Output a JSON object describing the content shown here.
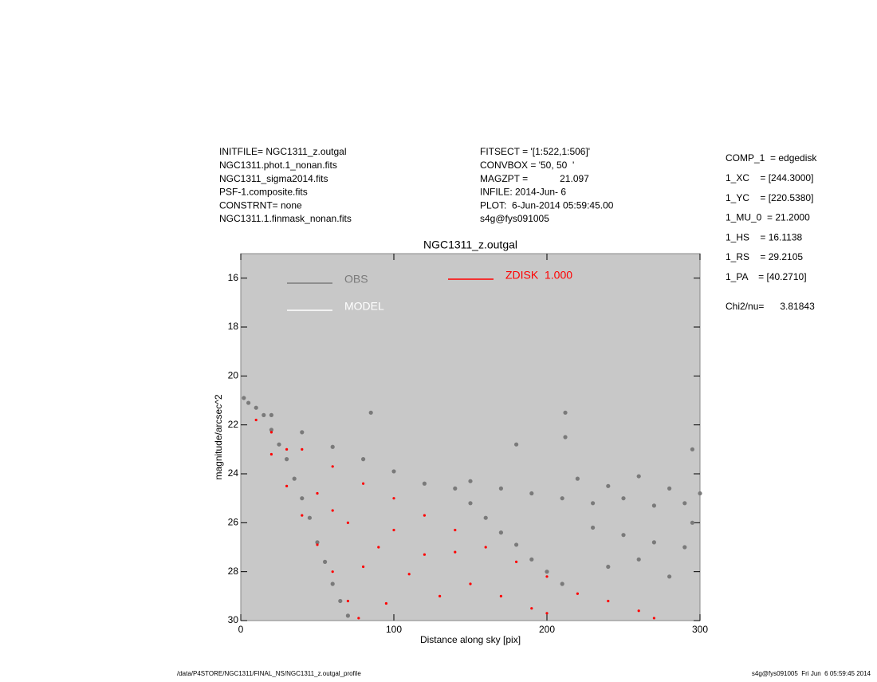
{
  "chart_data": {
    "type": "scatter",
    "title": "NGC1311_z.outgal",
    "x_label": "Distance along sky [pix]",
    "y_label": "magnitude/arcsec^2",
    "info_left": [
      "INITFILE= NGC1311_z.outgal",
      "NGC1311.phot.1_nonan.fits",
      "NGC1311_sigma2014.fits",
      "PSF-1.composite.fits",
      "CONSTRNT= none",
      "NGC1311.1.finmask_nonan.fits"
    ],
    "info_middle": [
      "FITSECT = '[1:522,1:506]'",
      "CONVBOX = '50, 50  '",
      "MAGZPT =            21.097",
      "INFILE: 2014-Jun- 6",
      "PLOT:  6-Jun-2014 05:59:45.00",
      "s4g@fys091005"
    ],
    "info_right": [
      "COMP_1  = edgedisk",
      "1_XC    = [244.3000]",
      "1_YC    = [220.5380]",
      "1_MU_0  = 21.2000",
      "1_HS    = 16.1138",
      "1_RS    = 29.2105",
      "1_PA    = [40.2710]"
    ],
    "fit_result": "Chi2/nu=      3.81843",
    "footer_left": "/data/P4STORE/NGC1311/FINAL_NS/NGC1311_z.outgal_profile",
    "footer_right": "s4g@fys091005  Fri Jun  6 05:59:45 2014",
    "xlim": [
      0,
      300
    ],
    "xticks": [
      0,
      100,
      200,
      300
    ],
    "ylim": [
      30,
      15
    ],
    "yticks": [
      16,
      18,
      20,
      22,
      24,
      26,
      28,
      30
    ],
    "series": [
      {
        "name": "OBS",
        "color": "#7a7a7a",
        "x": [
          2,
          5,
          10,
          15,
          20,
          25,
          30,
          35,
          40,
          45,
          50,
          55,
          60,
          65,
          70,
          20,
          40,
          60,
          80,
          100,
          120,
          140,
          150,
          160,
          170,
          180,
          190,
          200,
          210,
          150,
          170,
          190,
          210,
          230,
          250,
          270,
          290,
          220,
          240,
          260,
          280,
          300,
          230,
          250,
          270,
          290,
          240,
          260,
          280,
          295,
          85,
          212,
          212,
          295,
          180
        ],
        "values": [
          20.9,
          21.1,
          21.3,
          21.6,
          22.2,
          22.8,
          23.4,
          24.2,
          25.0,
          25.8,
          26.8,
          27.6,
          28.5,
          29.2,
          29.8,
          21.6,
          22.3,
          22.9,
          23.4,
          23.9,
          24.4,
          24.6,
          25.2,
          25.8,
          26.4,
          26.9,
          27.5,
          28.0,
          28.5,
          24.3,
          24.6,
          24.8,
          25.0,
          25.2,
          25.0,
          25.3,
          25.2,
          24.2,
          24.5,
          24.1,
          24.6,
          24.8,
          26.2,
          26.5,
          26.8,
          27.0,
          27.8,
          27.5,
          28.2,
          26.0,
          21.5,
          21.5,
          22.5,
          23.0,
          22.8
        ]
      },
      {
        "name": "MODEL",
        "color": "#ffffff",
        "x": [],
        "values": []
      },
      {
        "name": "ZDISK  1.000",
        "color": "#ff0000",
        "x": [
          10,
          20,
          40,
          60,
          80,
          100,
          120,
          140,
          160,
          180,
          200,
          220,
          240,
          260,
          270,
          20,
          30,
          40,
          50,
          60,
          70,
          77,
          50,
          70,
          90,
          110,
          130,
          100,
          120,
          150,
          170,
          190,
          80,
          95,
          140,
          200,
          60,
          30
        ],
        "values": [
          21.8,
          22.3,
          23.0,
          23.7,
          24.4,
          25.0,
          25.7,
          26.3,
          27.0,
          27.6,
          28.2,
          28.9,
          29.2,
          29.6,
          29.9,
          23.2,
          24.5,
          25.7,
          26.9,
          28.0,
          29.2,
          29.9,
          24.8,
          26.0,
          27.0,
          28.1,
          29.0,
          26.3,
          27.3,
          28.5,
          29.0,
          29.5,
          27.8,
          29.3,
          27.2,
          29.7,
          25.5,
          23.0
        ]
      }
    ]
  }
}
